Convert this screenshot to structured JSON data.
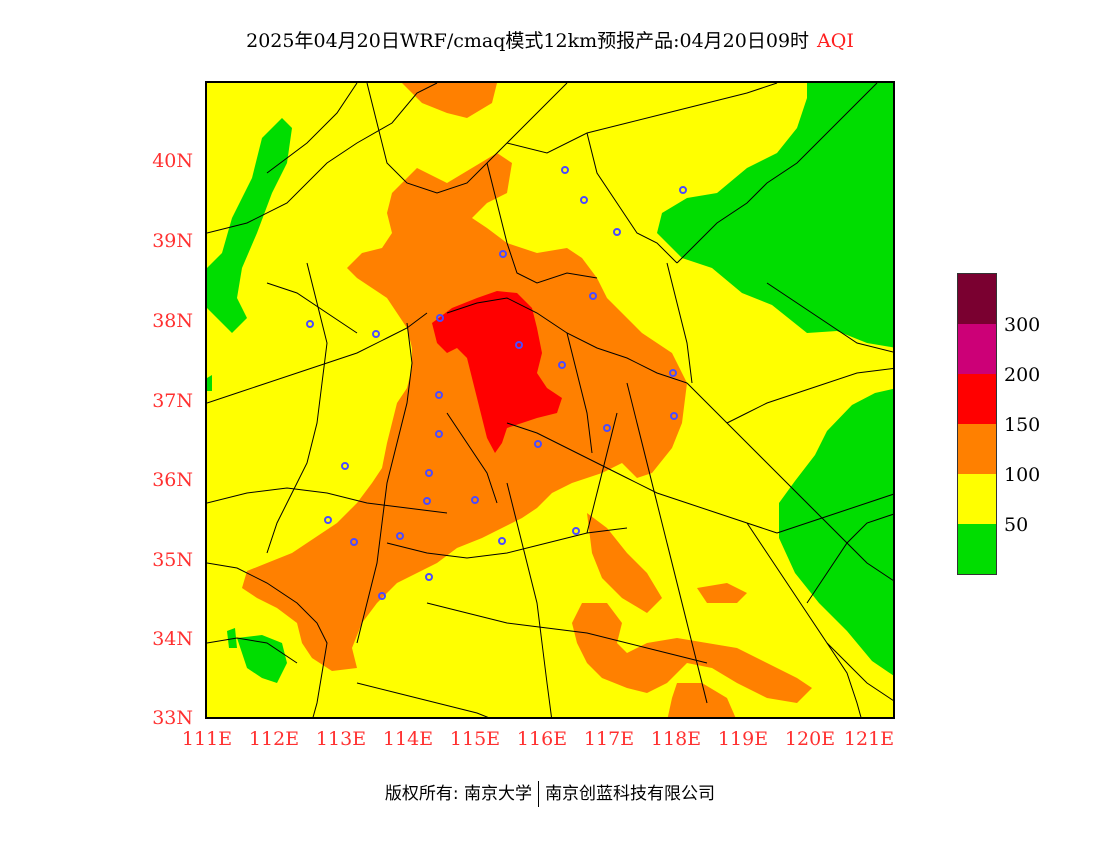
{
  "title": {
    "text": "2025年04月20日WRF/cmaq模式12km预报产品:04月20日09时",
    "variable": "AQI"
  },
  "map": {
    "lon_labels": [
      "111E",
      "112E",
      "113E",
      "114E",
      "115E",
      "116E",
      "117E",
      "118E",
      "119E",
      "120E",
      "121E"
    ],
    "lat_labels": [
      "40N",
      "39N",
      "38N",
      "37N",
      "36N",
      "35N",
      "34N",
      "33N"
    ],
    "lon_range": [
      111,
      121.3
    ],
    "lat_range": [
      33,
      41
    ],
    "colors": {
      "0-50": "#00dd00",
      "50-100": "#ffff00",
      "100-150": "#ff8000",
      "150-200": "#ff0000",
      "200-300": "#cc0077",
      "300+": "#7a0030",
      "boundaries": "#000000",
      "stations": "#4b4bff"
    }
  },
  "legend": {
    "colors": [
      "#7a0030",
      "#cc0077",
      "#ff0000",
      "#ff8000",
      "#ffff00",
      "#00dd00"
    ],
    "labels": [
      "300",
      "200",
      "150",
      "100",
      "50"
    ]
  },
  "footer": {
    "copyright": "版权所有: 南京大学",
    "company": "南京创蓝科技有限公司"
  }
}
